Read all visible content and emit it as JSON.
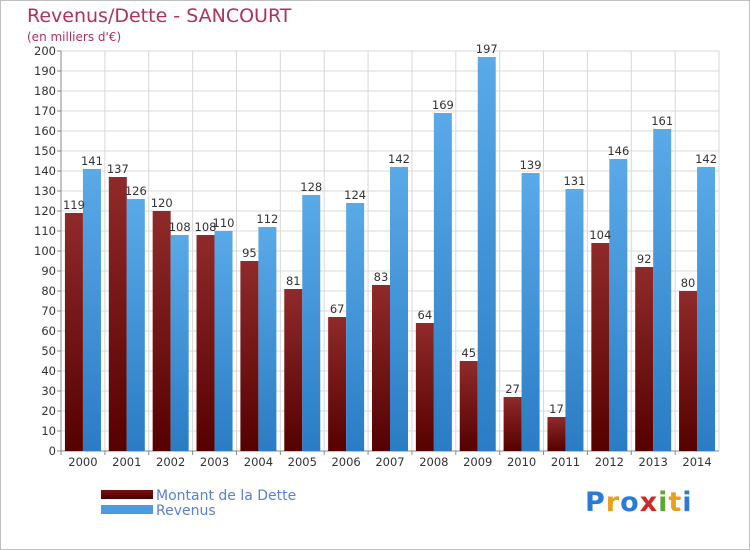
{
  "chart_data": {
    "type": "bar",
    "title": "Revenus/Dette - SANCOURT",
    "subtitle": "(en milliers d'€)",
    "categories": [
      "2000",
      "2001",
      "2002",
      "2003",
      "2004",
      "2005",
      "2006",
      "2007",
      "2008",
      "2009",
      "2010",
      "2011",
      "2012",
      "2013",
      "2014"
    ],
    "series": [
      {
        "name": "Montant de la Dette",
        "color": "#8b1a1a",
        "values": [
          119,
          137,
          120,
          108,
          95,
          81,
          67,
          83,
          64,
          45,
          27,
          17,
          104,
          92,
          80
        ]
      },
      {
        "name": "Revenus",
        "color": "#3a8fd9",
        "values": [
          141,
          126,
          108,
          110,
          112,
          128,
          124,
          142,
          169,
          197,
          139,
          131,
          146,
          161,
          142
        ]
      }
    ],
    "ylim": [
      0,
      200
    ],
    "ytick_step": 10,
    "grid": true,
    "legend": "bottom-left"
  },
  "logo": {
    "letters": [
      "P",
      "r",
      "o",
      "x",
      "i",
      "t",
      "i"
    ],
    "colors": [
      "#2b7bd6",
      "#e8a020",
      "#2b7bd6",
      "#d02828",
      "#5ba830",
      "#e8a020",
      "#2b7bd6"
    ]
  }
}
